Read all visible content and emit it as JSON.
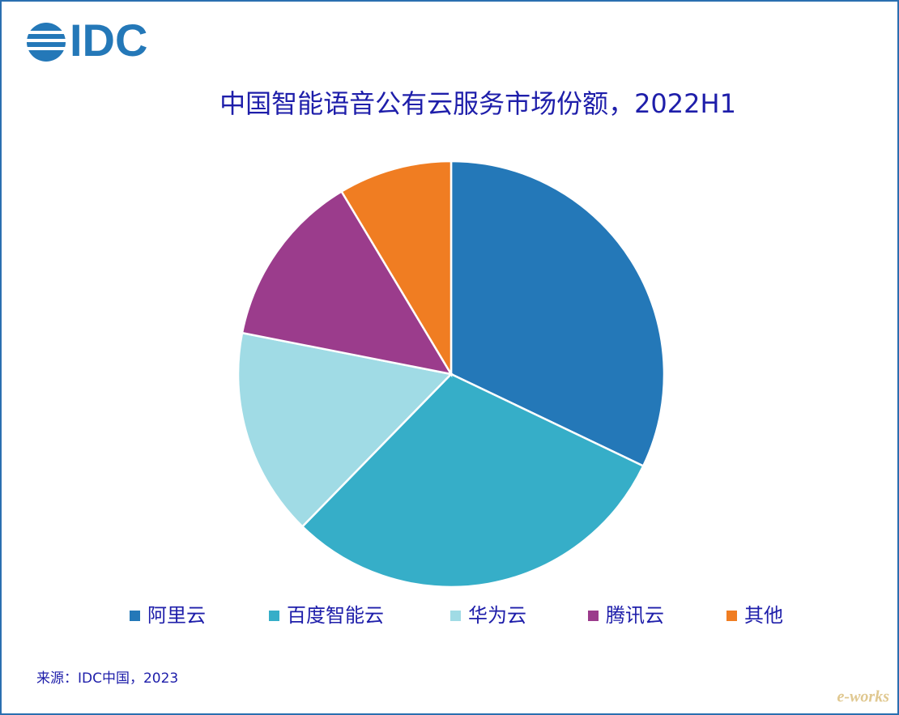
{
  "logo": "IDC",
  "chart_data": {
    "type": "pie",
    "title": "中国智能语音公有云服务市场份额，2022H1",
    "categories": [
      "阿里云",
      "百度智能云",
      "华为云",
      "腾讯云",
      "其他"
    ],
    "values": [
      32.1,
      30.2,
      15.8,
      13.3,
      8.6
    ],
    "colors": [
      "#2478b8",
      "#36aec8",
      "#a0dbe5",
      "#9b3c8c",
      "#f07d22"
    ],
    "legend": "bottom"
  },
  "source": "来源：IDC中国，2023",
  "watermark": "e-works"
}
